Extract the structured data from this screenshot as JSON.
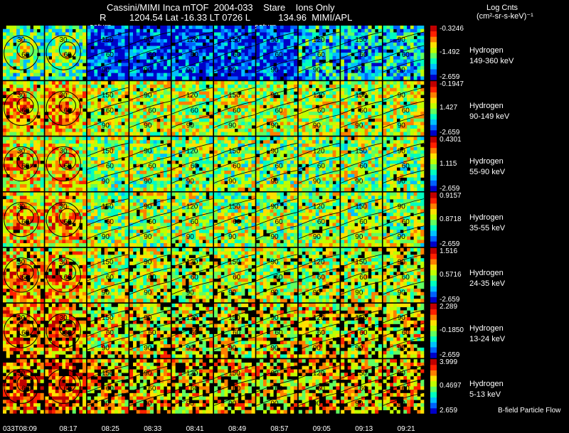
{
  "header": {
    "title": "Cassini/MIMI Inca mTOF  2004-033    Stare    Ions Only",
    "subtitle": "R         1204.54 Lat -16.33 LT 0726 L           134.96  MIMI/APL",
    "saturn_label_1": "saturn",
    "saturn_label_2": "saturn",
    "units_line1": "Log Cnts",
    "units_line2": "(cm²-sr-s-keV)⁻¹"
  },
  "chart_data": {
    "type": "heatmap",
    "rows": [
      {
        "species": "Hydrogen",
        "energy": "149-360 keV",
        "cbar_max": "-0.3246",
        "cbar_mid": "-1.492",
        "cbar_min": "-2.659",
        "level": 0.3
      },
      {
        "species": "Hydrogen",
        "energy": "90-149 keV",
        "cbar_max": "-0.1947",
        "cbar_mid": "1.427",
        "cbar_min": "-2.659",
        "level": 0.55
      },
      {
        "species": "Hydrogen",
        "energy": "55-90 keV",
        "cbar_max": "0.4301",
        "cbar_mid": "1.115",
        "cbar_min": "-2.659",
        "level": 0.5
      },
      {
        "species": "Hydrogen",
        "energy": "35-55 keV",
        "cbar_max": "0.9157",
        "cbar_mid": "0.8718",
        "cbar_min": "-2.659",
        "level": 0.52
      },
      {
        "species": "Hydrogen",
        "energy": "24-35 keV",
        "cbar_max": "1.516",
        "cbar_mid": "0.5716",
        "cbar_min": "-2.659",
        "level": 0.55
      },
      {
        "species": "Hydrogen",
        "energy": "13-24 keV",
        "cbar_max": "2.289",
        "cbar_mid": "-0.1850",
        "cbar_min": "-2.659",
        "level": 0.6
      },
      {
        "species": "Hydrogen",
        "energy": "5-13 keV",
        "cbar_max": "3.999",
        "cbar_mid": "0.4697",
        "cbar_min": "2.659",
        "level": 0.65
      }
    ],
    "time_labels": [
      "033T08:09",
      "08:17",
      "08:25",
      "08:33",
      "08:41",
      "08:49",
      "08:57",
      "09:05",
      "09:13",
      "09:21"
    ],
    "contour_labels": [
      "30",
      "60",
      "90",
      "120",
      "150"
    ],
    "flow_legend": "B-field Particle Flow",
    "colormap": [
      "#0000c8",
      "#0060ff",
      "#00c0ff",
      "#00ffc0",
      "#60ff60",
      "#c0ff00",
      "#ffe000",
      "#ff8000",
      "#ff2000",
      "#c00000"
    ]
  }
}
